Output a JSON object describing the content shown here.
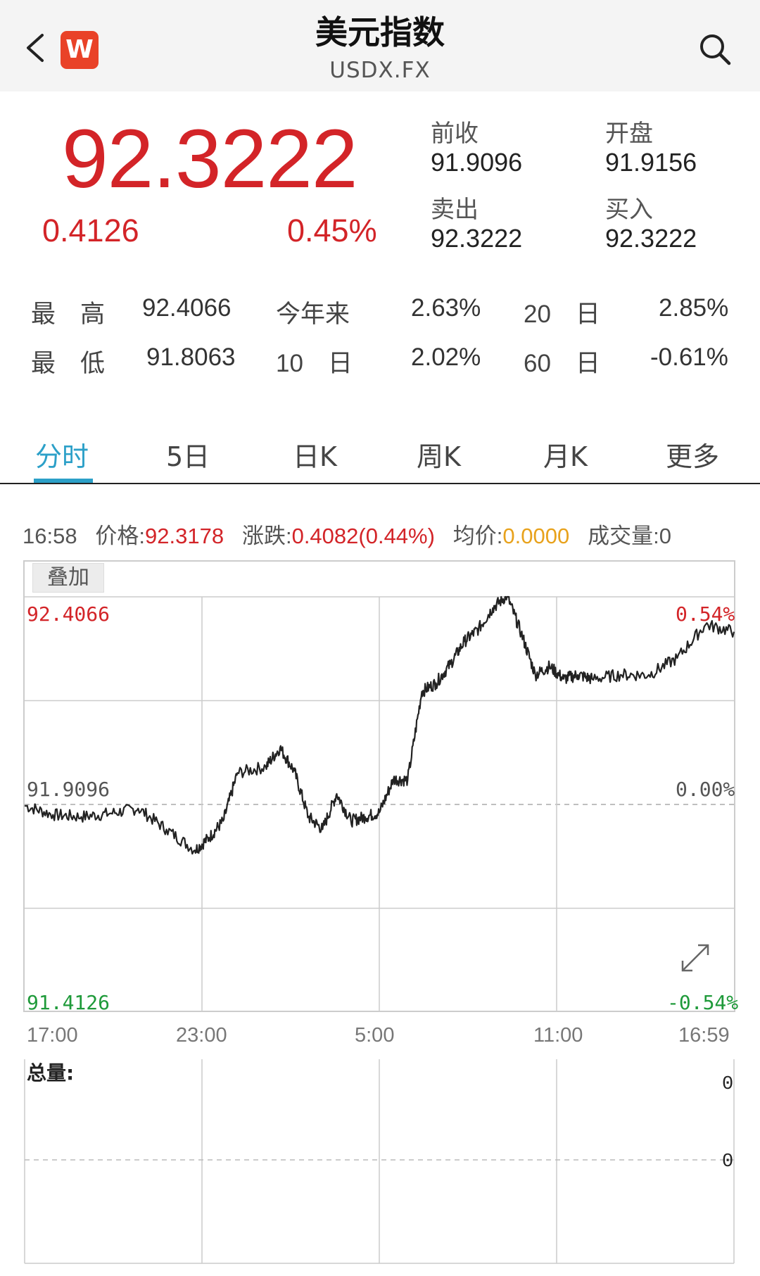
{
  "header": {
    "title": "美元指数",
    "subtitle": "USDX.FX",
    "app_icon_letter": "W",
    "back_icon": "chevron-left-icon",
    "search_icon": "search-icon"
  },
  "quote": {
    "price": "92.3222",
    "change": "0.4126",
    "change_pct": "0.45%",
    "fields": [
      {
        "label": "前收",
        "value": "91.9096"
      },
      {
        "label": "开盘",
        "value": "91.9156"
      },
      {
        "label": "卖出",
        "value": "92.3222"
      },
      {
        "label": "买入",
        "value": "92.3222"
      }
    ]
  },
  "stats": {
    "high_label": "最　高",
    "high": "92.4066",
    "low_label": "最　低",
    "low": "91.8063",
    "ytd_label": "今年来",
    "ytd": "2.63%",
    "d10_label": "10　日",
    "d10": "2.02%",
    "d20_label": "20　日",
    "d20": "2.85%",
    "d60_label": "60　日",
    "d60": "-0.61%"
  },
  "tabs": [
    "分时",
    "5日",
    "日K",
    "周K",
    "月K",
    "更多"
  ],
  "info": {
    "time": "16:58",
    "price_label": "价格:",
    "price": "92.3178",
    "chg_label": "涨跌:",
    "chg": "0.4082(0.44%)",
    "avg_label": "均价:",
    "avg": "0.0000",
    "vol_label": "成交量:",
    "vol": "0"
  },
  "chart_data": {
    "type": "line",
    "overlay_button": "叠加",
    "y_left_labels": [
      "92.4066",
      "91.9096",
      "91.4126"
    ],
    "y_right_labels": [
      "0.54%",
      "0.00%",
      "-0.54%"
    ],
    "ylim": [
      91.4126,
      92.4066
    ],
    "baseline": 91.9096,
    "x_labels": [
      "17:00",
      "23:00",
      "5:00",
      "11:00",
      "16:59"
    ],
    "x": [
      0,
      0.04,
      0.08,
      0.12,
      0.16,
      0.2,
      0.24,
      0.26,
      0.28,
      0.3,
      0.34,
      0.36,
      0.38,
      0.4,
      0.42,
      0.44,
      0.46,
      0.48,
      0.5,
      0.52,
      0.54,
      0.56,
      0.58,
      0.6,
      0.62,
      0.64,
      0.66,
      0.68,
      0.7,
      0.72,
      0.74,
      0.76,
      0.78,
      0.8,
      0.84,
      0.88,
      0.92,
      0.96,
      1.0
    ],
    "values": [
      91.907,
      91.885,
      91.88,
      91.888,
      91.9,
      91.85,
      91.8,
      91.83,
      91.87,
      91.985,
      92.0,
      92.045,
      91.99,
      91.88,
      91.85,
      91.935,
      91.87,
      91.88,
      91.89,
      91.97,
      91.968,
      92.18,
      92.2,
      92.245,
      92.3,
      92.33,
      92.38,
      92.41,
      92.32,
      92.22,
      92.24,
      92.21,
      92.22,
      92.21,
      92.22,
      92.22,
      92.26,
      92.34,
      92.323
    ],
    "volume_label": "总量:",
    "volume_axis": [
      "0",
      "0"
    ]
  }
}
